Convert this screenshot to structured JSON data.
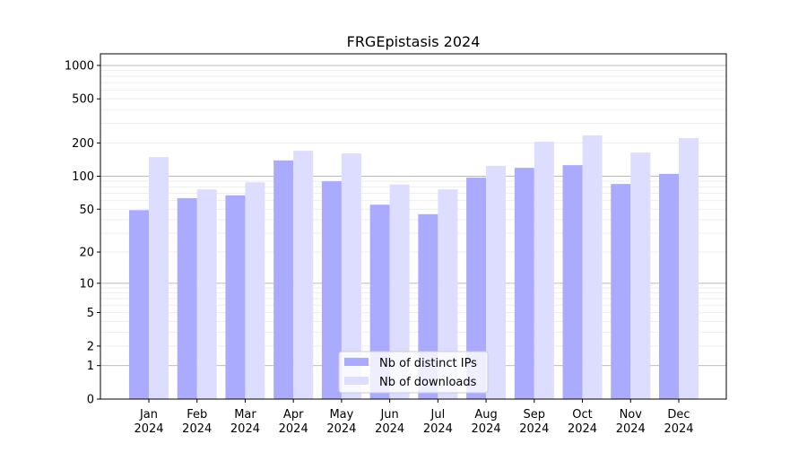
{
  "chart_data": {
    "type": "bar",
    "title": "FRGEpistasis 2024",
    "xlabel": "",
    "ylabel": "",
    "yscale": "log(1+y)",
    "ylim": [
      0,
      1200
    ],
    "yticks": [
      0,
      1,
      2,
      5,
      10,
      20,
      50,
      100,
      200,
      500,
      1000
    ],
    "grid": true,
    "legend_position": "bottom-center",
    "categories": [
      "Jan\n2024",
      "Feb\n2024",
      "Mar\n2024",
      "Apr\n2024",
      "May\n2024",
      "Jun\n2024",
      "Jul\n2024",
      "Aug\n2024",
      "Sep\n2024",
      "Oct\n2024",
      "Nov\n2024",
      "Dec\n2024"
    ],
    "series": [
      {
        "name": "Nb of distinct IPs",
        "color": "#aaaaff",
        "values": [
          49,
          63,
          67,
          139,
          90,
          55,
          45,
          97,
          119,
          126,
          85,
          105
        ]
      },
      {
        "name": "Nb of downloads",
        "color": "#ddddff",
        "values": [
          149,
          76,
          88,
          170,
          161,
          84,
          76,
          124,
          205,
          234,
          164,
          221
        ]
      }
    ]
  }
}
